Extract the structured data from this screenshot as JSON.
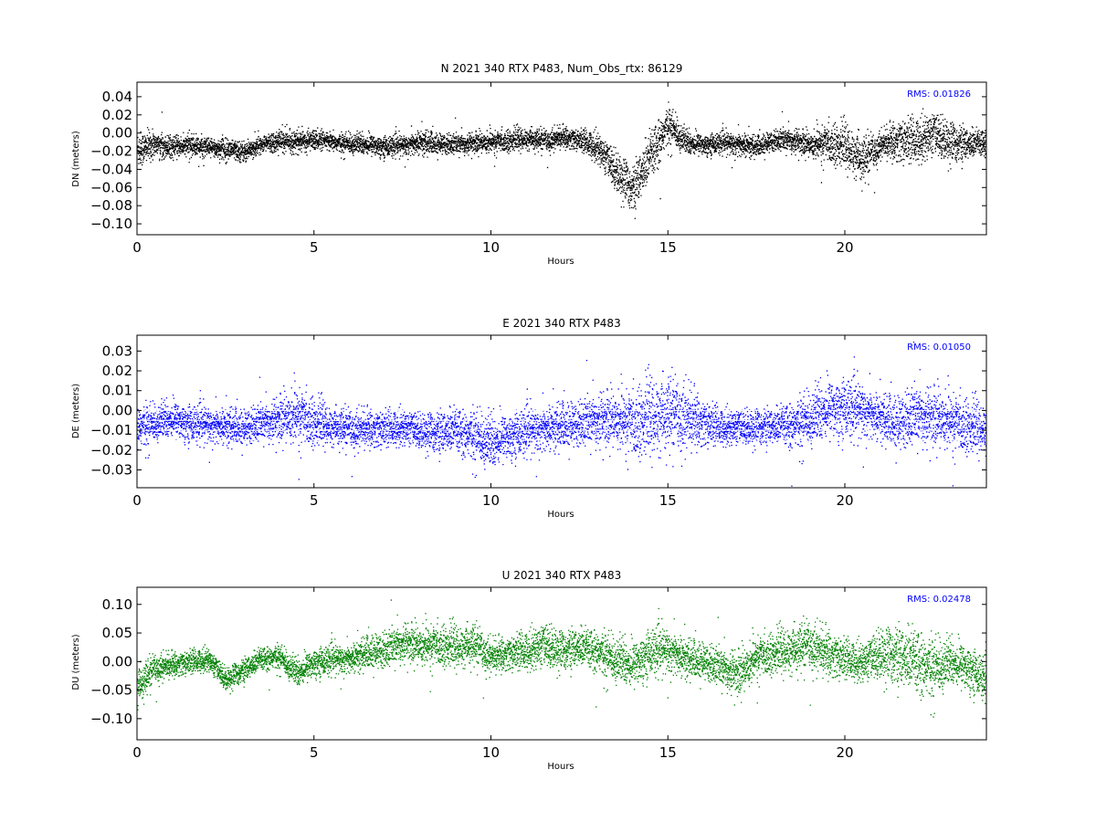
{
  "chart_data": [
    {
      "type": "scatter",
      "title": "N 2021 340 RTX  P483, Num_Obs_rtx: 86129",
      "xlabel": "Hours",
      "ylabel": "DN (meters)",
      "xlim": [
        0,
        24
      ],
      "ylim": [
        -0.112,
        0.056
      ],
      "xticks": [
        0,
        5,
        10,
        15,
        20
      ],
      "yticks": [
        -0.1,
        -0.08,
        -0.06,
        -0.04,
        -0.02,
        0.0,
        0.02,
        0.04
      ],
      "ytick_labels": [
        "−0.10",
        "−0.08",
        "−0.06",
        "−0.04",
        "−0.02",
        "0.00",
        "0.02",
        "0.04"
      ],
      "annotation": "RMS:  0.01826",
      "series": [
        {
          "color": "#000000",
          "x": [
            0,
            0.5,
            1,
            1.5,
            2,
            2.5,
            3,
            3.5,
            4,
            4.5,
            5,
            5.5,
            6,
            6.5,
            7,
            7.5,
            8,
            8.5,
            9,
            9.5,
            10,
            10.5,
            11,
            11.5,
            12,
            12.5,
            13,
            13.5,
            14,
            14.5,
            15,
            15.5,
            16,
            16.5,
            17,
            17.5,
            18,
            18.5,
            19,
            19.5,
            20,
            20.5,
            21,
            21.5,
            22,
            22.5,
            23,
            23.5,
            24
          ],
          "center": [
            -0.018,
            -0.012,
            -0.015,
            -0.013,
            -0.016,
            -0.017,
            -0.02,
            -0.012,
            -0.008,
            -0.009,
            -0.007,
            -0.01,
            -0.011,
            -0.012,
            -0.014,
            -0.013,
            -0.01,
            -0.012,
            -0.012,
            -0.01,
            -0.009,
            -0.008,
            -0.006,
            -0.008,
            -0.004,
            -0.007,
            -0.015,
            -0.04,
            -0.062,
            -0.025,
            0.01,
            -0.01,
            -0.012,
            -0.01,
            -0.012,
            -0.015,
            -0.008,
            -0.007,
            -0.012,
            -0.01,
            -0.015,
            -0.03,
            -0.012,
            -0.008,
            -0.008,
            0.0,
            -0.01,
            -0.012,
            -0.01
          ],
          "spread": [
            0.018,
            0.012,
            0.01,
            0.01,
            0.01,
            0.01,
            0.01,
            0.008,
            0.01,
            0.01,
            0.01,
            0.008,
            0.01,
            0.01,
            0.01,
            0.01,
            0.012,
            0.01,
            0.01,
            0.01,
            0.01,
            0.01,
            0.01,
            0.01,
            0.01,
            0.01,
            0.015,
            0.02,
            0.022,
            0.025,
            0.018,
            0.012,
            0.01,
            0.01,
            0.012,
            0.01,
            0.01,
            0.012,
            0.012,
            0.018,
            0.02,
            0.022,
            0.012,
            0.02,
            0.022,
            0.022,
            0.02,
            0.015,
            0.012
          ]
        }
      ]
    },
    {
      "type": "scatter",
      "title": "E 2021 340 RTX  P483",
      "xlabel": "Hours",
      "ylabel": "DE (meters)",
      "xlim": [
        0,
        24
      ],
      "ylim": [
        -0.039,
        0.038
      ],
      "xticks": [
        0,
        5,
        10,
        15,
        20
      ],
      "yticks": [
        -0.03,
        -0.02,
        -0.01,
        0.0,
        0.01,
        0.02,
        0.03
      ],
      "ytick_labels": [
        "−0.03",
        "−0.02",
        "−0.01",
        "0.00",
        "0.01",
        "0.02",
        "0.03"
      ],
      "annotation": "RMS:  0.01050",
      "series": [
        {
          "color": "#0000ff",
          "x": [
            0,
            0.5,
            1,
            1.5,
            2,
            2.5,
            3,
            3.5,
            4,
            4.5,
            5,
            5.5,
            6,
            6.5,
            7,
            7.5,
            8,
            8.5,
            9,
            9.5,
            10,
            10.5,
            11,
            11.5,
            12,
            12.5,
            13,
            13.5,
            14,
            14.5,
            15,
            15.5,
            16,
            16.5,
            17,
            17.5,
            18,
            18.5,
            19,
            19.5,
            20,
            20.5,
            21,
            21.5,
            22,
            22.5,
            23,
            23.5,
            24
          ],
          "center": [
            -0.008,
            -0.006,
            -0.004,
            -0.006,
            -0.007,
            -0.008,
            -0.009,
            -0.006,
            -0.004,
            -0.002,
            -0.006,
            -0.008,
            -0.009,
            -0.009,
            -0.009,
            -0.008,
            -0.01,
            -0.011,
            -0.01,
            -0.012,
            -0.016,
            -0.012,
            -0.01,
            -0.009,
            -0.008,
            -0.007,
            -0.004,
            -0.004,
            -0.006,
            -0.004,
            -0.002,
            -0.003,
            -0.006,
            -0.008,
            -0.008,
            -0.008,
            -0.008,
            -0.007,
            -0.004,
            0.001,
            0.002,
            0.0,
            -0.004,
            -0.007,
            -0.002,
            -0.003,
            -0.005,
            -0.008,
            -0.01
          ],
          "spread": [
            0.01,
            0.008,
            0.008,
            0.008,
            0.008,
            0.008,
            0.008,
            0.008,
            0.01,
            0.012,
            0.01,
            0.008,
            0.008,
            0.008,
            0.008,
            0.008,
            0.008,
            0.009,
            0.01,
            0.011,
            0.012,
            0.01,
            0.01,
            0.01,
            0.01,
            0.01,
            0.012,
            0.012,
            0.014,
            0.016,
            0.016,
            0.014,
            0.01,
            0.008,
            0.008,
            0.008,
            0.008,
            0.01,
            0.012,
            0.013,
            0.013,
            0.012,
            0.01,
            0.012,
            0.013,
            0.013,
            0.012,
            0.011,
            0.01
          ]
        }
      ]
    },
    {
      "type": "scatter",
      "title": "U 2021 340 RTX  P483",
      "xlabel": "Hours",
      "ylabel": "DU (meters)",
      "xlim": [
        0,
        24
      ],
      "ylim": [
        -0.137,
        0.13
      ],
      "xticks": [
        0,
        5,
        10,
        15,
        20
      ],
      "yticks": [
        -0.1,
        -0.05,
        0.0,
        0.05,
        0.1
      ],
      "ytick_labels": [
        "−0.10",
        "−0.05",
        "0.00",
        "0.05",
        "0.10"
      ],
      "annotation": "RMS:  0.02478",
      "series": [
        {
          "color": "#008000",
          "x": [
            0,
            0.5,
            1,
            1.5,
            2,
            2.5,
            3,
            3.5,
            4,
            4.5,
            5,
            5.5,
            6,
            6.5,
            7,
            7.5,
            8,
            8.5,
            9,
            9.5,
            10,
            10.5,
            11,
            11.5,
            12,
            12.5,
            13,
            13.5,
            14,
            14.5,
            15,
            15.5,
            16,
            16.5,
            17,
            17.5,
            18,
            18.5,
            19,
            19.5,
            20,
            20.5,
            21,
            21.5,
            22,
            22.5,
            23,
            23.5,
            24
          ],
          "center": [
            -0.045,
            -0.01,
            -0.005,
            0.0,
            0.005,
            -0.03,
            -0.015,
            0.005,
            0.01,
            -0.02,
            0.0,
            0.005,
            0.005,
            0.015,
            0.02,
            0.035,
            0.03,
            0.03,
            0.025,
            0.03,
            0.01,
            0.015,
            0.02,
            0.03,
            0.02,
            0.025,
            0.02,
            0.005,
            -0.005,
            0.02,
            0.02,
            0.005,
            0.0,
            -0.01,
            -0.02,
            0.01,
            0.015,
            0.02,
            0.03,
            0.015,
            0.005,
            0.0,
            0.015,
            0.01,
            0.0,
            -0.01,
            0.0,
            -0.01,
            -0.03
          ],
          "spread": [
            0.03,
            0.02,
            0.018,
            0.018,
            0.018,
            0.018,
            0.018,
            0.018,
            0.018,
            0.022,
            0.022,
            0.022,
            0.022,
            0.025,
            0.028,
            0.03,
            0.03,
            0.03,
            0.03,
            0.03,
            0.025,
            0.025,
            0.03,
            0.035,
            0.03,
            0.03,
            0.032,
            0.035,
            0.035,
            0.035,
            0.035,
            0.03,
            0.028,
            0.03,
            0.035,
            0.03,
            0.03,
            0.035,
            0.035,
            0.035,
            0.03,
            0.03,
            0.04,
            0.045,
            0.05,
            0.045,
            0.035,
            0.035,
            0.03
          ]
        }
      ]
    }
  ]
}
